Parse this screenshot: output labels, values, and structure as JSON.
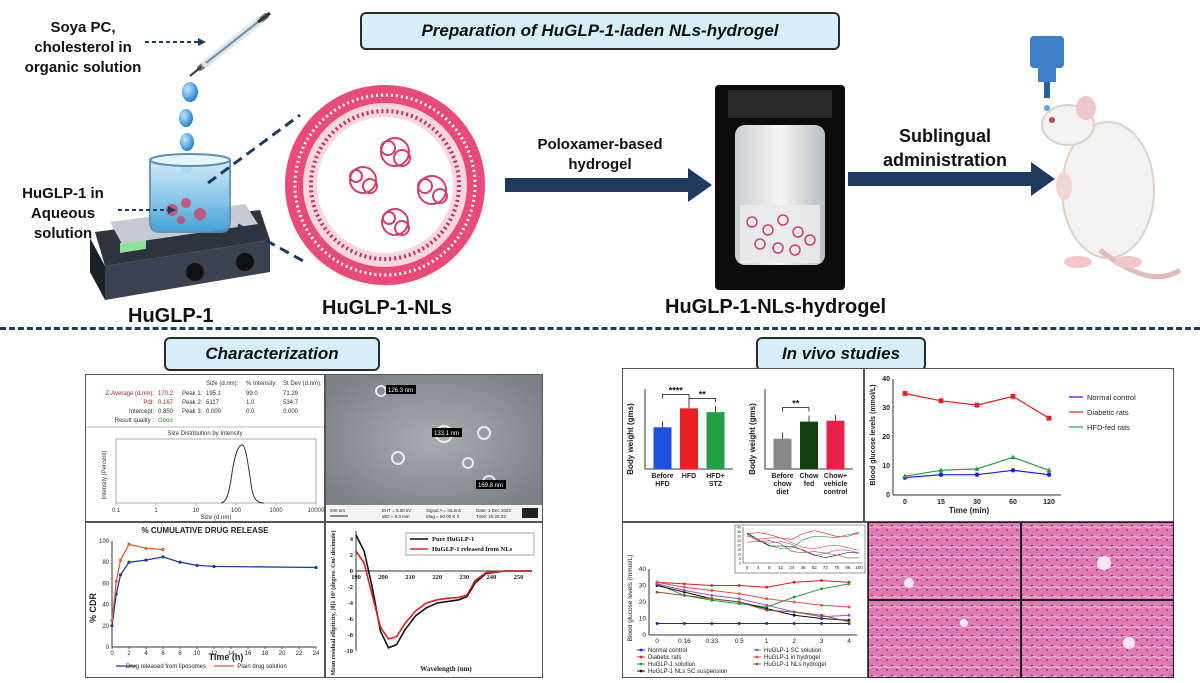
{
  "top": {
    "title": "Preparation of HuGLP-1-laden NLs-hydrogel",
    "soya_label": "Soya PC, cholesterol in organic solution",
    "aqueous_label": "HuGLP-1 in Aqueous solution",
    "hu_label": "HuGLP-1",
    "nls_label": "HuGLP-1-NLs",
    "poloxamer_label": "Poloxamer-based hydrogel",
    "hydrogel_label": "HuGLP-1-NLs-hydrogel",
    "sublingual_label": "Sublingual administration"
  },
  "sections": {
    "characterization": "Characterization",
    "invivo": "In vivo studies"
  },
  "colors": {
    "banner_fill": "#d6eef8",
    "arrow": "#1f3a5f",
    "lipid": "#d0406a",
    "red": "#e02020",
    "blue": "#1a4fc0",
    "green": "#2a9a3a"
  },
  "chart_data": [
    {
      "type": "table",
      "rows": [
        {
          "label": "Z-Average (d.nm):",
          "value": "170.2",
          "peak": "Peak 1:",
          "size": "195.1",
          "intensity": "99.0",
          "stdev": "71.29"
        },
        {
          "label": "PdI:",
          "value": "0.167",
          "peak": "Peak 2:",
          "size": "5117",
          "intensity": "1.0",
          "stdev": "534.7"
        },
        {
          "label": "Intercept:",
          "value": "0.850",
          "peak": "Peak 3:",
          "size": "0.000",
          "intensity": "0.0",
          "stdev": "0.000"
        }
      ],
      "headers": [
        "Size (d.nm):",
        "% Intensity:",
        "St Dev (d.nm):"
      ],
      "result_label": "Result quality :",
      "result_value": "Good",
      "plot_title": "Size Distribution by Intensity",
      "xlabel": "Size (d.nm)",
      "ylabel": "Intensity (Percent)",
      "xticks": [
        "0.1",
        "1",
        "10",
        "100",
        "1000",
        "10000"
      ]
    },
    {
      "type": "line",
      "title": "% CUMULATIVE DRUG RELEASE",
      "xlabel": "Time (h)",
      "ylabel": "% CDR",
      "xlim": [
        0,
        24
      ],
      "ylim": [
        0,
        100
      ],
      "xticks": [
        0,
        2,
        4,
        6,
        8,
        10,
        12,
        14,
        16,
        18,
        20,
        22,
        24
      ],
      "yticks": [
        0,
        20,
        40,
        60,
        80,
        100
      ],
      "series": [
        {
          "name": "Drug released from liposomes",
          "color": "#1a3fa0",
          "x": [
            0,
            0.5,
            1,
            2,
            4,
            6,
            8,
            10,
            12,
            24
          ],
          "y": [
            20,
            50,
            68,
            80,
            82,
            85,
            80,
            77,
            76,
            75
          ]
        },
        {
          "name": "Plain drug solution",
          "color": "#e0602a",
          "x": [
            0,
            0.5,
            1,
            2,
            4,
            6
          ],
          "y": [
            25,
            62,
            82,
            97,
            93,
            92
          ]
        }
      ]
    },
    {
      "type": "line",
      "ylabel": "Mean residual ellipticity, [θ]λ 10³ (degree. Cm² decimole)",
      "xlabel": "Wavelength (nm)",
      "xlim": [
        190,
        255
      ],
      "ylim": [
        -10,
        5
      ],
      "xticks": [
        190,
        200,
        210,
        220,
        230,
        240,
        250
      ],
      "yticks": [
        4,
        2,
        0,
        -2,
        -4,
        -6,
        -8,
        -10
      ],
      "series": [
        {
          "name": "Pure HuGLP-1",
          "color": "#111111",
          "x": [
            190,
            193,
            196,
            199,
            202,
            205,
            208,
            212,
            216,
            220,
            224,
            228,
            231,
            234,
            238,
            245,
            255
          ],
          "y": [
            4.5,
            2.5,
            -2,
            -7.5,
            -9.6,
            -9.2,
            -7.4,
            -5.6,
            -4.6,
            -4,
            -3.8,
            -3.6,
            -3.2,
            -1.5,
            -0.3,
            0,
            0
          ]
        },
        {
          "name": "HuGLP-1 released from NLs",
          "color": "#e02020",
          "x": [
            190,
            193,
            196,
            199,
            202,
            205,
            208,
            212,
            216,
            220,
            224,
            228,
            231,
            234,
            238,
            245,
            255
          ],
          "y": [
            2.5,
            1,
            -3,
            -7,
            -8.5,
            -8.2,
            -6.6,
            -5,
            -4,
            -3.6,
            -3.4,
            -3.3,
            -3,
            -1.2,
            -0.2,
            0,
            0
          ]
        }
      ]
    },
    {
      "type": "bar",
      "ylabel": "Body weight (gms)",
      "categories": [
        "Before HFD",
        "HFD",
        "HFD+ STZ"
      ],
      "values": [
        220,
        320,
        300
      ],
      "colors": [
        "#2050e0",
        "#e82020",
        "#20a040"
      ],
      "annotations": [
        "****",
        "**"
      ]
    },
    {
      "type": "bar",
      "ylabel": "Body weight (gms)",
      "categories": [
        "Before chow diet",
        "Chow fed",
        "Chow+ vehicle control"
      ],
      "values": [
        160,
        250,
        255
      ],
      "colors": [
        "#888888",
        "#104010",
        "#e8204a"
      ],
      "annotations": [
        "**"
      ]
    },
    {
      "type": "line",
      "ylabel": "Blood glucose levels (mmol/L)",
      "xlabel": "Time (min)",
      "ylim": [
        0,
        40
      ],
      "yticks": [
        0,
        10,
        20,
        30,
        40
      ],
      "categories": [
        "0",
        "15",
        "30",
        "60",
        "120"
      ],
      "series": [
        {
          "name": "Normal control",
          "color": "#1a1ae0",
          "values": [
            6,
            7,
            7,
            8.5,
            7
          ]
        },
        {
          "name": "Diabetic rats",
          "color": "#e02020",
          "values": [
            35,
            32.5,
            31,
            34,
            26.5
          ]
        },
        {
          "name": "HFD-fed rats",
          "color": "#20a040",
          "values": [
            6.5,
            8.5,
            9,
            13,
            8.5
          ]
        }
      ]
    },
    {
      "type": "line",
      "ylabel": "Blood glucose levels (mmol/L)",
      "ylim": [
        0,
        40
      ],
      "yticks": [
        0,
        10,
        20,
        30,
        40
      ],
      "categories": [
        "0",
        "0.16",
        "0.33",
        "0.5",
        "1",
        "2",
        "3",
        "4"
      ],
      "inset_categories": [
        "0",
        "4",
        "8",
        "12",
        "24",
        "48",
        "52",
        "72",
        "76",
        "96",
        "100"
      ],
      "inset_yticks": [
        0,
        5,
        10,
        15,
        20,
        25,
        30,
        35,
        40
      ],
      "series": [
        {
          "name": "Normal control",
          "color": "#1a1ae0",
          "values": [
            7,
            7,
            7,
            7,
            7,
            7,
            7,
            7
          ]
        },
        {
          "name": "Diabetic rats",
          "color": "#e02020",
          "values": [
            32,
            31,
            30,
            30,
            29,
            32,
            33,
            32
          ]
        },
        {
          "name": "HuGLP-1 solution",
          "color": "#20a040",
          "values": [
            31,
            24,
            21,
            19,
            17,
            23,
            28,
            31
          ]
        },
        {
          "name": "HuGLP-1 NLs SC suspension",
          "color": "#111111",
          "values": [
            30,
            26,
            22,
            20,
            16,
            12,
            10,
            9
          ]
        },
        {
          "name": "HuGLP-1 SC solution",
          "color": "#a050c0",
          "values": [
            31,
            27,
            24,
            22,
            18,
            14,
            11,
            12
          ]
        },
        {
          "name": "HuGLP-1 in hydrogel",
          "color": "#e05050",
          "values": [
            32,
            29,
            27,
            25,
            22,
            20,
            18,
            17
          ]
        },
        {
          "name": "HuGLP-1 NLs hydrogel",
          "color": "#8a5a2a",
          "values": [
            26,
            24,
            22,
            20,
            15,
            14,
            12,
            8
          ]
        }
      ]
    }
  ],
  "sem": {
    "labels": [
      "126.3 nm",
      "133.1 nm",
      "169.8 nm"
    ],
    "footer": [
      "200 nm",
      "EHT = 5.00 kV",
      "WD = 5.3 mm",
      "Signal A = InLens",
      "Mag = 50.00 K X",
      "Date: 1 Dec 2022",
      "Time: 15:26:32"
    ]
  }
}
